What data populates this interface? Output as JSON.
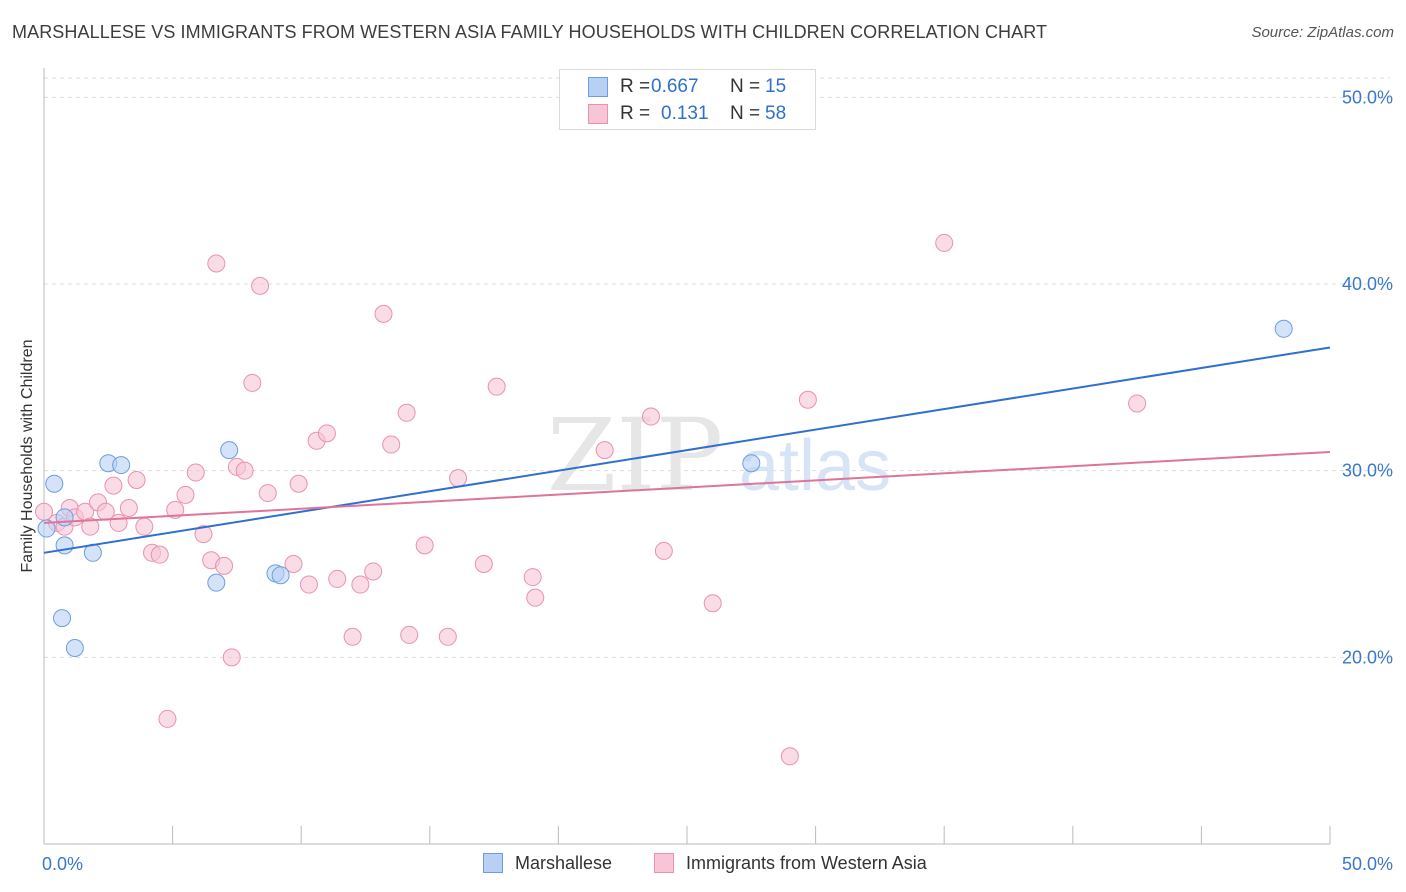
{
  "title": "MARSHALLESE VS IMMIGRANTS FROM WESTERN ASIA FAMILY HOUSEHOLDS WITH CHILDREN CORRELATION CHART",
  "source": "Source: ZipAtlas.com",
  "watermark": {
    "zip": "ZIP",
    "atlas": "atlas"
  },
  "legend_top": [
    {
      "r_label": "R =",
      "r_value": "0.667",
      "n_label": "N =",
      "n_value": "15"
    },
    {
      "r_label": "R =",
      "r_value": "0.131",
      "n_label": "N =",
      "n_value": "58"
    }
  ],
  "colors": {
    "blue_fill": "#b8d0f3",
    "blue_stroke": "#6d9de0",
    "blue_line": "#2f6fd0",
    "pink_fill": "#f7c5d5",
    "pink_stroke": "#e892ae",
    "pink_line": "#e0739a",
    "tick_label": "#3a78c9",
    "grid": "#dddddd"
  },
  "chart_data": {
    "type": "scatter",
    "xlabel": "",
    "ylabel": "Family Households with Children",
    "xlim": [
      0,
      50
    ],
    "ylim": [
      10,
      52
    ],
    "x_tick_labels": [
      {
        "value": 0,
        "label": "0.0%"
      },
      {
        "value": 50,
        "label": "50.0%"
      }
    ],
    "y_tick_labels": [
      {
        "value": 20,
        "label": "20.0%"
      },
      {
        "value": 30,
        "label": "30.0%"
      },
      {
        "value": 40,
        "label": "40.0%"
      },
      {
        "value": 50,
        "label": "50.0%"
      }
    ],
    "grid": "horizontal dashed",
    "series": [
      {
        "name": "Marshallese",
        "color": "#6d9de0",
        "r": "0.667",
        "n": "15",
        "points": [
          [
            0.1,
            26.9
          ],
          [
            0.4,
            29.3
          ],
          [
            0.8,
            27.5
          ],
          [
            0.8,
            26.0
          ],
          [
            0.7,
            22.1
          ],
          [
            1.2,
            20.5
          ],
          [
            1.9,
            25.6
          ],
          [
            2.5,
            30.4
          ],
          [
            3.0,
            30.3
          ],
          [
            6.7,
            24.0
          ],
          [
            7.2,
            31.1
          ],
          [
            9.0,
            24.5
          ],
          [
            9.2,
            24.4
          ],
          [
            27.5,
            30.4
          ],
          [
            48.2,
            37.6
          ]
        ],
        "trend": [
          [
            0,
            25.6
          ],
          [
            50,
            36.6
          ]
        ]
      },
      {
        "name": "Immigrants from Western Asia",
        "color": "#e892ae",
        "r": "0.131",
        "n": "58",
        "points": [
          [
            0.0,
            27.8
          ],
          [
            0.5,
            27.2
          ],
          [
            0.8,
            27.0
          ],
          [
            1.0,
            28.0
          ],
          [
            1.2,
            27.5
          ],
          [
            1.6,
            27.8
          ],
          [
            1.8,
            27.0
          ],
          [
            2.1,
            28.3
          ],
          [
            2.4,
            27.8
          ],
          [
            2.7,
            29.2
          ],
          [
            2.9,
            27.2
          ],
          [
            3.3,
            28.0
          ],
          [
            3.6,
            29.5
          ],
          [
            3.9,
            27.0
          ],
          [
            4.2,
            25.6
          ],
          [
            4.5,
            25.5
          ],
          [
            4.8,
            16.7
          ],
          [
            5.1,
            27.9
          ],
          [
            5.5,
            28.7
          ],
          [
            5.9,
            29.9
          ],
          [
            6.2,
            26.6
          ],
          [
            6.5,
            25.2
          ],
          [
            6.7,
            41.1
          ],
          [
            7.0,
            24.9
          ],
          [
            7.3,
            20.0
          ],
          [
            7.5,
            30.2
          ],
          [
            7.8,
            30.0
          ],
          [
            8.1,
            34.7
          ],
          [
            8.4,
            39.9
          ],
          [
            8.7,
            28.8
          ],
          [
            9.7,
            25.0
          ],
          [
            9.9,
            29.3
          ],
          [
            10.3,
            23.9
          ],
          [
            10.6,
            31.6
          ],
          [
            11.0,
            32.0
          ],
          [
            11.4,
            24.2
          ],
          [
            12.0,
            21.1
          ],
          [
            12.3,
            23.9
          ],
          [
            12.8,
            24.6
          ],
          [
            13.2,
            38.4
          ],
          [
            13.5,
            31.4
          ],
          [
            14.1,
            33.1
          ],
          [
            14.2,
            21.2
          ],
          [
            14.8,
            26.0
          ],
          [
            15.7,
            21.1
          ],
          [
            16.1,
            29.6
          ],
          [
            17.1,
            25.0
          ],
          [
            17.6,
            34.5
          ],
          [
            19.0,
            24.3
          ],
          [
            19.1,
            23.2
          ],
          [
            21.8,
            31.1
          ],
          [
            23.6,
            32.9
          ],
          [
            24.1,
            25.7
          ],
          [
            26.0,
            22.9
          ],
          [
            29.0,
            14.7
          ],
          [
            29.7,
            33.8
          ],
          [
            35.0,
            42.2
          ],
          [
            42.5,
            33.6
          ]
        ],
        "trend": [
          [
            0,
            27.2
          ],
          [
            50,
            31.0
          ]
        ]
      }
    ]
  },
  "legend_bottom": [
    {
      "name": "Marshallese"
    },
    {
      "name": "Immigrants from Western Asia"
    }
  ]
}
